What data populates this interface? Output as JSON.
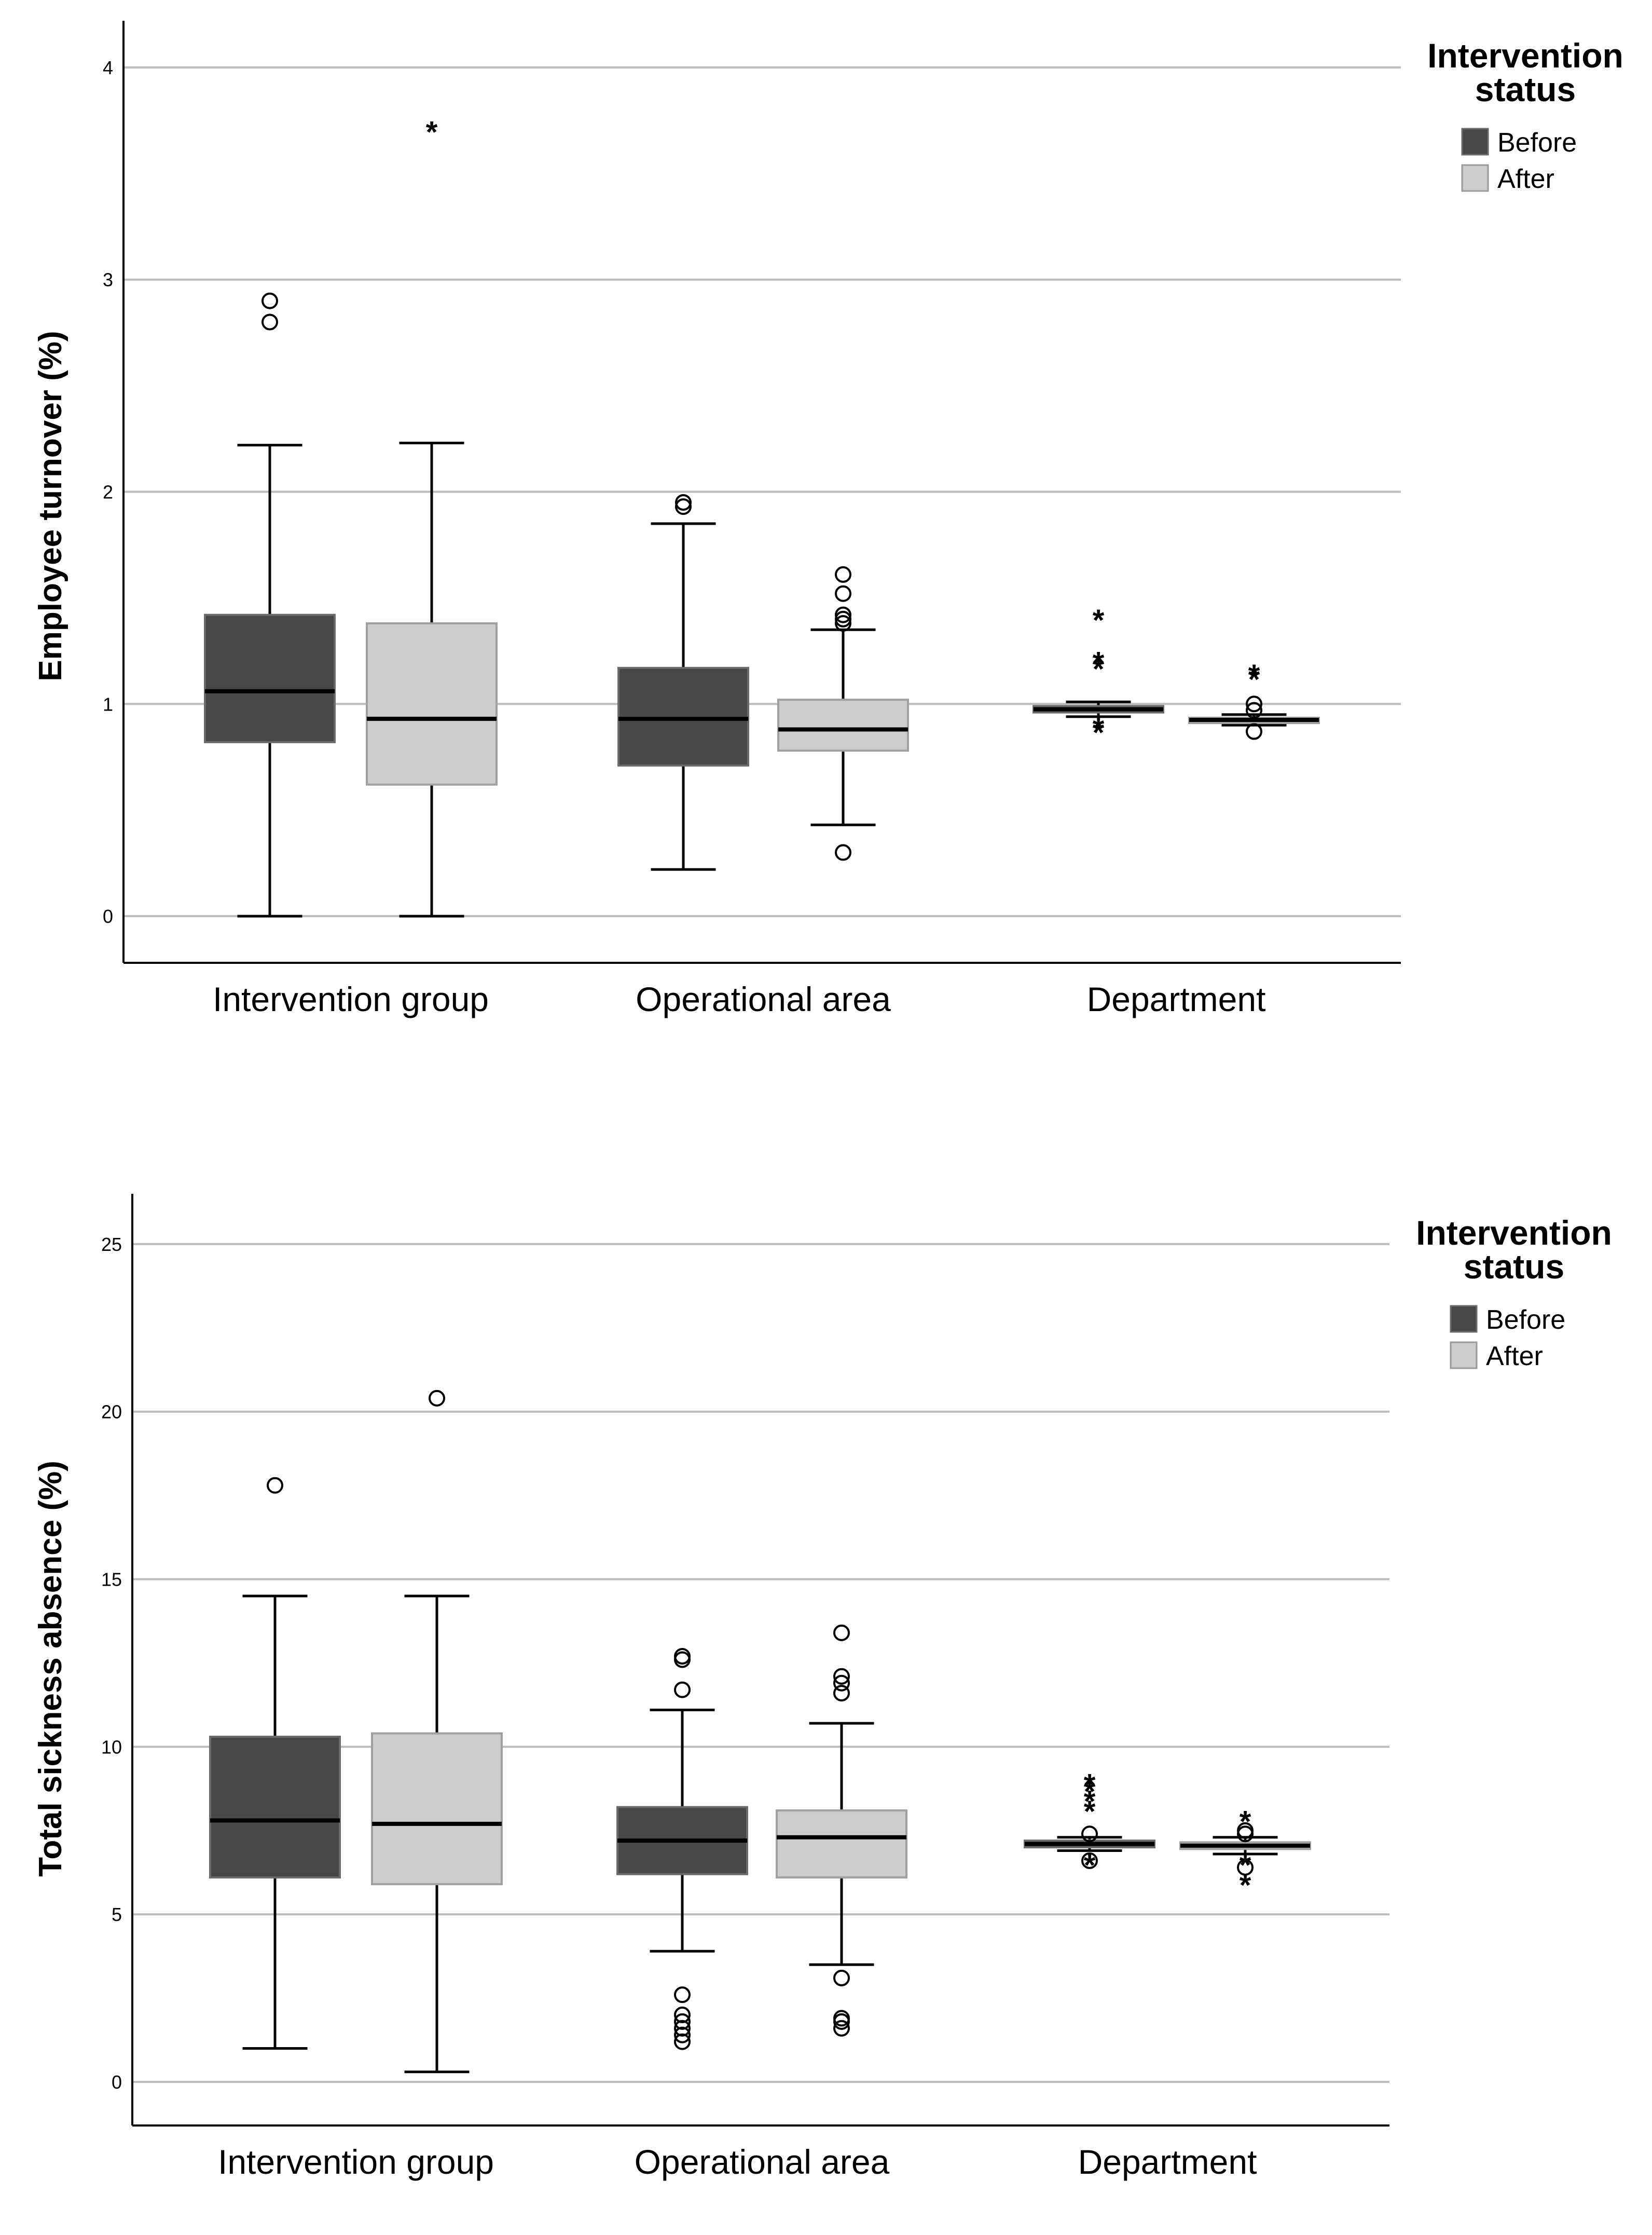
{
  "chart_data": [
    {
      "type": "boxplot",
      "ylabel": "Employee turnover (%)",
      "xlabel": "",
      "ylim": [
        -0.22,
        4.22
      ],
      "yticks": [
        0,
        1,
        2,
        3,
        4
      ],
      "grid": "horizontal",
      "categories": [
        "Intervention group",
        "Operational area",
        "Department"
      ],
      "legend": {
        "title_line1": "Intervention",
        "title_line2": "status",
        "position": "top-right",
        "items": [
          {
            "label": "Before",
            "color": "#474747"
          },
          {
            "label": "After",
            "color": "#cccccc"
          }
        ]
      },
      "series": [
        {
          "name": "Before",
          "color": "#474747",
          "boxes": [
            {
              "category": "Intervention group",
              "whisker_low": 0.0,
              "q1": 0.82,
              "median": 1.06,
              "q3": 1.42,
              "whisker_high": 2.22,
              "outliers": [
                2.8,
                2.9
              ],
              "extremes": []
            },
            {
              "category": "Operational area",
              "whisker_low": 0.22,
              "q1": 0.71,
              "median": 0.93,
              "q3": 1.17,
              "whisker_high": 1.85,
              "outliers": [
                1.93,
                1.95
              ],
              "extremes": []
            },
            {
              "category": "Department",
              "whisker_low": 0.94,
              "q1": 0.96,
              "median": 0.975,
              "q3": 0.99,
              "whisker_high": 1.01,
              "outliers": [],
              "extremes": [
                0.87,
                0.89,
                1.17,
                1.2,
                1.4
              ]
            }
          ]
        },
        {
          "name": "After",
          "color": "#cccccc",
          "boxes": [
            {
              "category": "Intervention group",
              "whisker_low": 0.0,
              "q1": 0.62,
              "median": 0.93,
              "q3": 1.38,
              "whisker_high": 2.23,
              "outliers": [],
              "extremes": [
                3.7
              ]
            },
            {
              "category": "Operational area",
              "whisker_low": 0.43,
              "q1": 0.78,
              "median": 0.88,
              "q3": 1.02,
              "whisker_high": 1.35,
              "outliers": [
                0.3,
                1.38,
                1.4,
                1.42,
                1.52,
                1.61
              ],
              "extremes": []
            },
            {
              "category": "Department",
              "whisker_low": 0.9,
              "q1": 0.91,
              "median": 0.925,
              "q3": 0.935,
              "whisker_high": 0.95,
              "outliers": [
                0.87,
                0.97,
                1.0
              ],
              "extremes": [
                1.12,
                1.14
              ]
            }
          ]
        }
      ]
    },
    {
      "type": "boxplot",
      "ylabel": "Total sickness absence (%)",
      "xlabel": "",
      "ylim": [
        -1.3,
        26.5
      ],
      "yticks": [
        0,
        5,
        10,
        15,
        20,
        25
      ],
      "grid": "horizontal",
      "categories": [
        "Intervention group",
        "Operational area",
        "Department"
      ],
      "legend": {
        "title_line1": "Intervention",
        "title_line2": "status",
        "position": "top-right",
        "items": [
          {
            "label": "Before",
            "color": "#474747"
          },
          {
            "label": "After",
            "color": "#cccccc"
          }
        ]
      },
      "series": [
        {
          "name": "Before",
          "color": "#474747",
          "boxes": [
            {
              "category": "Intervention group",
              "whisker_low": 1.0,
              "q1": 6.1,
              "median": 7.8,
              "q3": 10.3,
              "whisker_high": 14.5,
              "outliers": [
                17.8
              ],
              "extremes": []
            },
            {
              "category": "Operational area",
              "whisker_low": 3.9,
              "q1": 6.2,
              "median": 7.2,
              "q3": 8.2,
              "whisker_high": 11.1,
              "outliers": [
                1.2,
                1.4,
                1.6,
                1.8,
                2.0,
                2.6,
                11.7,
                12.6,
                12.7
              ],
              "extremes": []
            },
            {
              "category": "Department",
              "whisker_low": 6.9,
              "q1": 7.0,
              "median": 7.1,
              "q3": 7.2,
              "whisker_high": 7.3,
              "outliers": [
                6.6,
                7.4
              ],
              "extremes": [
                6.5,
                8.1,
                8.4,
                8.7,
                8.9
              ]
            }
          ]
        },
        {
          "name": "After",
          "color": "#cccccc",
          "boxes": [
            {
              "category": "Intervention group",
              "whisker_low": 0.3,
              "q1": 5.9,
              "median": 7.7,
              "q3": 10.4,
              "whisker_high": 14.5,
              "outliers": [
                20.4
              ],
              "extremes": []
            },
            {
              "category": "Operational area",
              "whisker_low": 3.5,
              "q1": 6.1,
              "median": 7.3,
              "q3": 8.1,
              "whisker_high": 10.7,
              "outliers": [
                1.6,
                1.8,
                1.9,
                3.1,
                11.6,
                11.9,
                12.1,
                13.4
              ],
              "extremes": []
            },
            {
              "category": "Department",
              "whisker_low": 6.8,
              "q1": 6.95,
              "median": 7.05,
              "q3": 7.15,
              "whisker_high": 7.3,
              "outliers": [
                6.4,
                7.4,
                7.5
              ],
              "extremes": [
                5.9,
                6.5,
                7.8
              ]
            }
          ]
        }
      ]
    }
  ]
}
